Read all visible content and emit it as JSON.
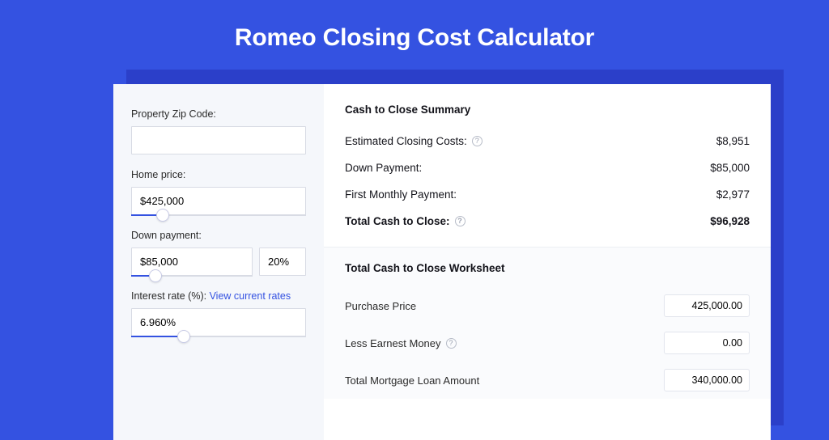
{
  "colors": {
    "page_bg": "#3452e1",
    "shadow": "#2b3fc9",
    "card_bg": "#ffffff",
    "left_panel_bg": "#f5f7fb",
    "worksheet_bg": "#fafbfd",
    "text": "#13131a",
    "muted_text": "#2a2a2a",
    "border": "#d8dbe4",
    "divider": "#eceef3",
    "accent": "#3452e1",
    "help_border": "#b7bcc8",
    "help_text": "#9aa0b0"
  },
  "title": "Romeo Closing Cost Calculator",
  "left": {
    "zip": {
      "label": "Property Zip Code:",
      "value": ""
    },
    "home_price": {
      "label": "Home price:",
      "value": "$425,000",
      "slider_pct": 18
    },
    "down_payment": {
      "label": "Down payment:",
      "value": "$85,000",
      "pct_value": "20%",
      "slider_pct": 20
    },
    "interest_rate": {
      "label_prefix": "Interest rate (%): ",
      "link_text": "View current rates",
      "value": "6.960%",
      "slider_pct": 30
    }
  },
  "summary": {
    "heading": "Cash to Close Summary",
    "rows": [
      {
        "label": "Estimated Closing Costs:",
        "has_help": true,
        "value": "$8,951",
        "bold": false
      },
      {
        "label": "Down Payment:",
        "has_help": false,
        "value": "$85,000",
        "bold": false
      },
      {
        "label": "First Monthly Payment:",
        "has_help": false,
        "value": "$2,977",
        "bold": false
      },
      {
        "label": "Total Cash to Close:",
        "has_help": true,
        "value": "$96,928",
        "bold": true
      }
    ]
  },
  "worksheet": {
    "heading": "Total Cash to Close Worksheet",
    "rows": [
      {
        "label": "Purchase Price",
        "has_help": false,
        "value": "425,000.00"
      },
      {
        "label": "Less Earnest Money",
        "has_help": true,
        "value": "0.00"
      },
      {
        "label": "Total Mortgage Loan Amount",
        "has_help": false,
        "value": "340,000.00"
      }
    ]
  }
}
